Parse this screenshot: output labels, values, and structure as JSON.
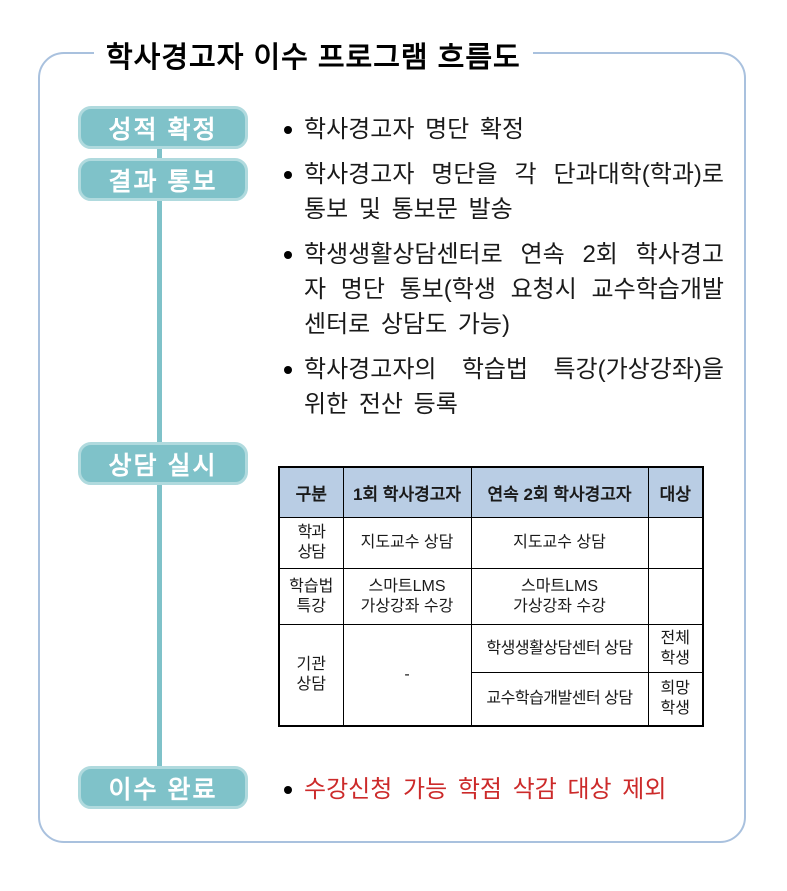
{
  "title": "학사경고자 이수 프로그램 흐름도",
  "colors": {
    "stage_box": "#7fc2c9",
    "stage_box_rim": "#b0dade",
    "frame_border": "#a9c1de",
    "table_header_bg": "#b9cde4",
    "highlight_red": "#cc2a2a"
  },
  "flow": {
    "stages": [
      {
        "label": "성적 확정"
      },
      {
        "label": "결과 통보"
      },
      {
        "label": "상담 실시"
      },
      {
        "label": "이수 완료"
      }
    ]
  },
  "bullets": {
    "grade_confirm": "학사경고자 명단 확정",
    "notify_1": "학사경고자 명단을 각 단과대학(학과)로 통보 및 통보문 발송",
    "notify_2": "학생생활상담센터로 연속 2회 학사경고자 명단 통보(학생 요청시 교수학습개발센터로 상담도 가능)",
    "notify_3": "학사경고자의 학습법 특강(가상강좌)을 위한 전산 등록",
    "complete": "수강신청 가능 학점 삭감 대상 제외"
  },
  "table": {
    "headers": [
      "구분",
      "1회 학사경고자",
      "연속 2회 학사경고자",
      "대상"
    ],
    "row_dept": {
      "category": "학과\n상담",
      "first": "지도교수 상담",
      "second": "지도교수 상담",
      "target": ""
    },
    "row_method": {
      "category": "학습법\n특강",
      "first": "스마트LMS\n가상강좌 수강",
      "second": "스마트LMS\n가상강좌 수강",
      "target": ""
    },
    "row_org": {
      "category": "기관\n상담",
      "first": "-",
      "second_row1": "학생생활상담센터 상담",
      "target_row1": "전체\n학생",
      "second_row2": "교수학습개발센터 상담",
      "target_row2": "희망\n학생"
    }
  }
}
